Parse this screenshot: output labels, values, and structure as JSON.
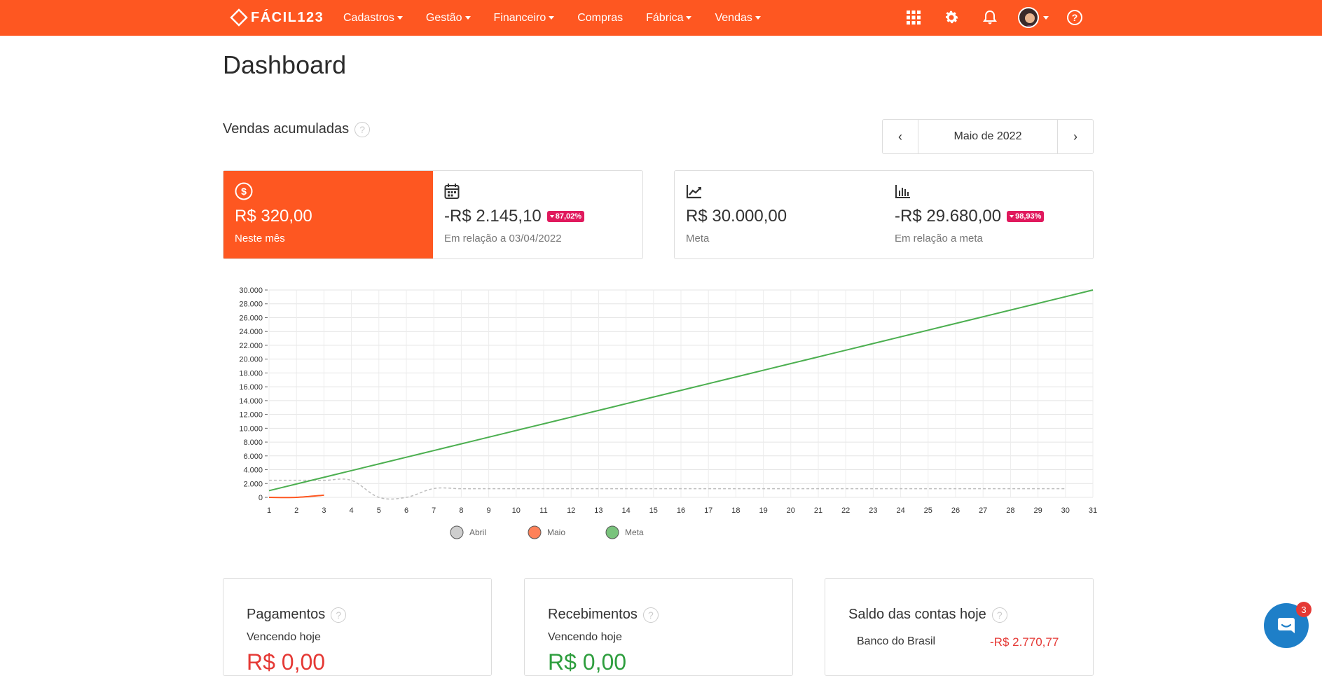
{
  "brand": {
    "name": "FÁCIL123",
    "color": "#fe5721"
  },
  "nav": {
    "items": [
      {
        "label": "Cadastros",
        "dropdown": true
      },
      {
        "label": "Gestão",
        "dropdown": true
      },
      {
        "label": "Financeiro",
        "dropdown": true
      },
      {
        "label": "Compras",
        "dropdown": false
      },
      {
        "label": "Fábrica",
        "dropdown": true
      },
      {
        "label": "Vendas",
        "dropdown": true
      }
    ],
    "icons": [
      "apps-grid-icon",
      "gear-icon",
      "bell-icon",
      "avatar",
      "help-icon"
    ]
  },
  "page": {
    "title": "Dashboard"
  },
  "section": {
    "title": "Vendas acumuladas",
    "help": "?"
  },
  "month_nav": {
    "prev": "‹",
    "label": "Maio de 2022",
    "next": "›"
  },
  "kpis": {
    "month": {
      "value": "R$ 320,00",
      "label": "Neste mês",
      "icon": "dollar-icon"
    },
    "vs_prev": {
      "value": "-R$ 2.145,10",
      "badge": "87,02%",
      "label": "Em relação a 03/04/2022",
      "icon": "calendar-icon"
    },
    "goal": {
      "value": "R$ 30.000,00",
      "label": "Meta",
      "icon": "trend-icon"
    },
    "vs_goal": {
      "value": "-R$ 29.680,00",
      "badge": "98,93%",
      "label": "Em relação a meta",
      "icon": "bar-chart-icon"
    }
  },
  "chart_data": {
    "type": "line",
    "title": "",
    "xlabel": "",
    "ylabel": "",
    "x": [
      1,
      2,
      3,
      4,
      5,
      6,
      7,
      8,
      9,
      10,
      11,
      12,
      13,
      14,
      15,
      16,
      17,
      18,
      19,
      20,
      21,
      22,
      23,
      24,
      25,
      26,
      27,
      28,
      29,
      30,
      31
    ],
    "ylim": [
      0,
      30000
    ],
    "y_ticks": [
      "0",
      "2.000",
      "4.000",
      "6.000",
      "8.000",
      "10.000",
      "12.000",
      "14.000",
      "16.000",
      "18.000",
      "20.000",
      "22.000",
      "24.000",
      "26.000",
      "28.000",
      "30.000"
    ],
    "legend_position": "bottom",
    "series": [
      {
        "name": "Abril",
        "color": "#bdbdbd",
        "dashed": true,
        "x": [
          1,
          2,
          3,
          4,
          5,
          6,
          7,
          8,
          9,
          10,
          11,
          12,
          13,
          14,
          15,
          16,
          17,
          18,
          19,
          20,
          21,
          22,
          23,
          24,
          25,
          26,
          27,
          28,
          29,
          30
        ],
        "values": [
          2465,
          2465,
          2465,
          2465,
          0,
          0,
          1280,
          1250,
          1250,
          1250,
          1250,
          1250,
          1250,
          1250,
          1250,
          1250,
          1250,
          1250,
          1250,
          1250,
          1250,
          1250,
          1250,
          1250,
          1250,
          1250,
          1250,
          1250,
          1250,
          1250
        ]
      },
      {
        "name": "Maio",
        "color": "#fe5721",
        "dashed": false,
        "x": [
          1,
          2,
          3
        ],
        "values": [
          0,
          0,
          320
        ]
      },
      {
        "name": "Meta",
        "color": "#4caf50",
        "dashed": false,
        "x": [
          1,
          2,
          3,
          4,
          5,
          6,
          7,
          8,
          9,
          10,
          11,
          12,
          13,
          14,
          15,
          16,
          17,
          18,
          19,
          20,
          21,
          22,
          23,
          24,
          25,
          26,
          27,
          28,
          29,
          30,
          31
        ],
        "values": [
          968,
          1935,
          2903,
          3871,
          4839,
          5806,
          6774,
          7742,
          8710,
          9677,
          10645,
          11613,
          12581,
          13548,
          14516,
          15484,
          16452,
          17419,
          18387,
          19355,
          20323,
          21290,
          22258,
          23226,
          24194,
          25161,
          26129,
          27097,
          28065,
          29032,
          30000
        ]
      }
    ]
  },
  "cards": {
    "payments": {
      "title": "Pagamentos",
      "sub": "Vencendo hoje",
      "amount": "R$ 0,00"
    },
    "receipts": {
      "title": "Recebimentos",
      "sub": "Vencendo hoje",
      "amount": "R$ 0,00"
    },
    "balance": {
      "title": "Saldo das contas hoje",
      "account": "Banco do Brasil",
      "value": "-R$ 2.770,77"
    }
  },
  "chat": {
    "badge": "3"
  }
}
